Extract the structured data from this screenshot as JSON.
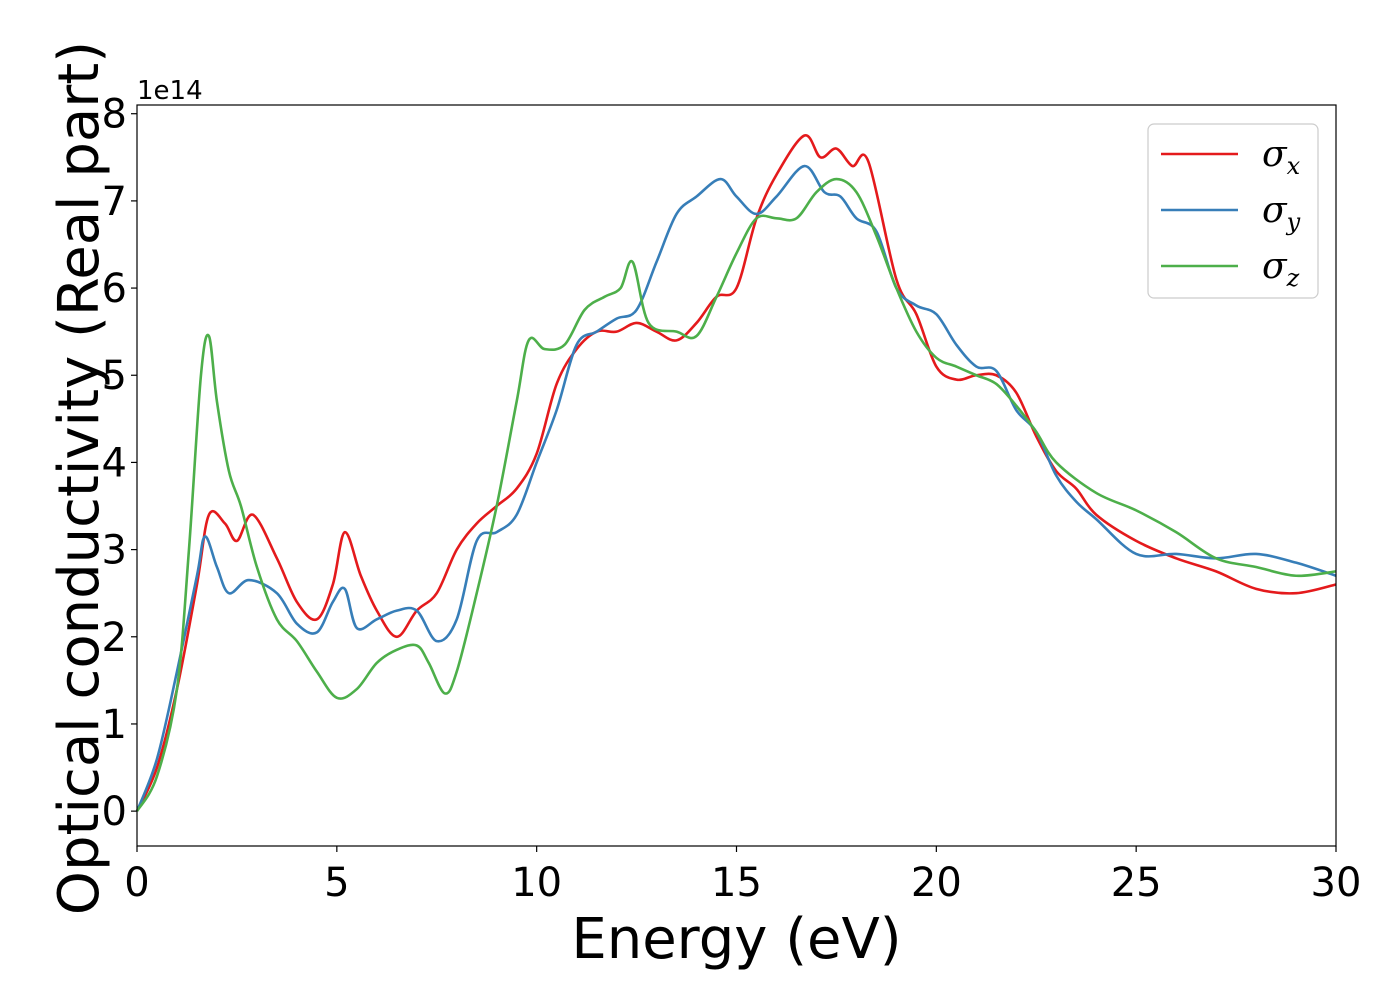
{
  "chart_data": {
    "type": "line",
    "xlabel": "Energy (eV)",
    "ylabel": "Optical conductivity (Real part)",
    "y_offset_label": "1e14",
    "xlim": [
      0,
      30
    ],
    "ylim": [
      -0.4,
      8.1
    ],
    "xticks": [
      0,
      5,
      10,
      15,
      20,
      25,
      30
    ],
    "xtick_labels": [
      "0",
      "5",
      "10",
      "15",
      "20",
      "25",
      "30"
    ],
    "yticks": [
      0,
      1,
      2,
      3,
      4,
      5,
      6,
      7,
      8
    ],
    "ytick_labels": [
      "0",
      "1",
      "2",
      "3",
      "4",
      "5",
      "6",
      "7",
      "8"
    ],
    "grid": false,
    "legend_position": "top-right",
    "series": [
      {
        "name": "σx",
        "symbol": "σ",
        "subscript": "x",
        "color": "#e41a1c",
        "x": [
          0,
          0.5,
          1,
          1.5,
          1.8,
          2.2,
          2.5,
          2.9,
          3.5,
          4,
          4.5,
          4.9,
          5.2,
          5.6,
          6,
          6.5,
          7,
          7.5,
          8,
          8.5,
          9,
          9.5,
          10,
          10.5,
          11,
          11.5,
          12,
          12.5,
          13,
          13.5,
          14,
          14.5,
          15,
          15.5,
          16,
          16.7,
          17.1,
          17.5,
          17.9,
          18.3,
          19,
          19.5,
          20,
          20.5,
          21,
          21.5,
          22,
          22.5,
          23,
          23.5,
          24,
          25,
          26,
          27,
          28,
          29,
          30
        ],
        "y": [
          0,
          0.5,
          1.4,
          2.6,
          3.4,
          3.3,
          3.1,
          3.4,
          2.9,
          2.4,
          2.2,
          2.6,
          3.2,
          2.7,
          2.3,
          2.0,
          2.3,
          2.5,
          3.0,
          3.3,
          3.5,
          3.7,
          4.1,
          4.9,
          5.3,
          5.5,
          5.5,
          5.6,
          5.5,
          5.4,
          5.6,
          5.9,
          6.0,
          6.8,
          7.3,
          7.75,
          7.5,
          7.6,
          7.4,
          7.45,
          6.1,
          5.7,
          5.1,
          4.95,
          5.0,
          5.0,
          4.8,
          4.3,
          3.9,
          3.7,
          3.4,
          3.1,
          2.9,
          2.75,
          2.55,
          2.5,
          2.6
        ]
      },
      {
        "name": "σy",
        "symbol": "σ",
        "subscript": "y",
        "color": "#377eb8",
        "x": [
          0,
          0.5,
          1,
          1.5,
          1.7,
          2,
          2.3,
          2.8,
          3.5,
          4,
          4.5,
          4.9,
          5.2,
          5.5,
          6,
          6.5,
          7,
          7.5,
          8,
          8.5,
          9,
          9.5,
          10,
          10.5,
          11,
          11.5,
          12,
          12.5,
          13,
          13.5,
          14,
          14.6,
          15,
          15.5,
          16,
          16.7,
          17.2,
          17.6,
          18,
          18.5,
          19,
          19.5,
          20,
          20.5,
          21,
          21.5,
          22,
          22.5,
          23,
          23.5,
          24,
          25,
          26,
          27,
          28,
          29,
          30
        ],
        "y": [
          0,
          0.6,
          1.6,
          2.7,
          3.15,
          2.8,
          2.5,
          2.65,
          2.5,
          2.15,
          2.05,
          2.4,
          2.55,
          2.1,
          2.2,
          2.3,
          2.3,
          1.95,
          2.2,
          3.1,
          3.2,
          3.4,
          4.0,
          4.6,
          5.35,
          5.5,
          5.65,
          5.75,
          6.3,
          6.85,
          7.05,
          7.25,
          7.05,
          6.85,
          7.05,
          7.4,
          7.1,
          7.05,
          6.8,
          6.65,
          6.0,
          5.8,
          5.7,
          5.35,
          5.1,
          5.05,
          4.6,
          4.35,
          3.85,
          3.55,
          3.35,
          2.95,
          2.95,
          2.9,
          2.95,
          2.85,
          2.7
        ]
      },
      {
        "name": "σz",
        "symbol": "σ",
        "subscript": "z",
        "color": "#4daf4a",
        "x": [
          0,
          0.5,
          1,
          1.3,
          1.6,
          1.8,
          2,
          2.3,
          2.6,
          3,
          3.5,
          4,
          4.5,
          5,
          5.5,
          6,
          6.5,
          7,
          7.3,
          7.7,
          8,
          8.5,
          9,
          9.5,
          9.8,
          10.2,
          10.7,
          11.2,
          11.7,
          12.1,
          12.4,
          12.8,
          13.5,
          14,
          14.5,
          15,
          15.5,
          16,
          16.5,
          17,
          17.5,
          18,
          18.5,
          19,
          19.5,
          20,
          20.5,
          21,
          21.5,
          22,
          22.5,
          23,
          24,
          25,
          26,
          27,
          28,
          29,
          30
        ],
        "y": [
          0,
          0.4,
          1.4,
          3.0,
          5.0,
          5.45,
          4.7,
          3.9,
          3.5,
          2.8,
          2.2,
          1.95,
          1.6,
          1.3,
          1.4,
          1.7,
          1.85,
          1.9,
          1.7,
          1.35,
          1.6,
          2.5,
          3.5,
          4.7,
          5.4,
          5.3,
          5.35,
          5.75,
          5.9,
          6.0,
          6.3,
          5.6,
          5.5,
          5.45,
          5.9,
          6.4,
          6.8,
          6.8,
          6.8,
          7.1,
          7.25,
          7.1,
          6.6,
          6.0,
          5.5,
          5.2,
          5.1,
          5.0,
          4.9,
          4.65,
          4.35,
          4.0,
          3.65,
          3.45,
          3.2,
          2.9,
          2.8,
          2.7,
          2.75
        ]
      }
    ]
  }
}
